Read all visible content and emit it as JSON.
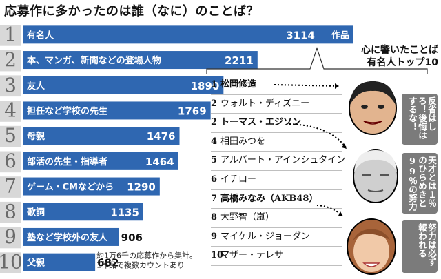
{
  "title": "応募作に多かったのは誰（なに）のことば？",
  "chart_data": {
    "type": "bar",
    "orientation": "horizontal",
    "title": "応募作に多かったのは誰（なに）のことば？",
    "ranks": [
      "1",
      "2",
      "3",
      "4",
      "5",
      "6",
      "7",
      "8",
      "9",
      "10"
    ],
    "categories": [
      "有名人",
      "本、マンガ、新聞などの登場人物",
      "友人",
      "担任など学校の先生",
      "母親",
      "部活の先生・指導者",
      "ゲーム・CMなどから",
      "歌詞",
      "塾など学校外の友人",
      "父親"
    ],
    "values": [
      3114,
      2211,
      1890,
      1769,
      1476,
      1464,
      1290,
      1135,
      906,
      682
    ],
    "value_labels": [
      "3114",
      "2211",
      "1890",
      "1769",
      "1476",
      "1464",
      "1290",
      "1135",
      "906",
      "682"
    ],
    "unit_label": "作品",
    "note": [
      "約1万6千の応募作から集計。",
      "1作品で複数カウントあり"
    ],
    "colors": {
      "bar": "#2f67b1",
      "rank_band": "#d8d8d8"
    }
  },
  "ranking": {
    "title_lines": [
      "心に響いたことば",
      "有名人トップ10"
    ],
    "items": [
      {
        "num": "1",
        "name": "松岡修造",
        "highlight": true
      },
      {
        "num": "2",
        "name": "ウォルト・ディズニー",
        "highlight": false
      },
      {
        "num": "2",
        "name": "トーマス・エジソン",
        "highlight": true
      },
      {
        "num": "4",
        "name": "相田みつを",
        "highlight": false
      },
      {
        "num": "5",
        "name": "アルバート・アインシュタイン",
        "highlight": false
      },
      {
        "num": "6",
        "name": "イチロー",
        "highlight": false
      },
      {
        "num": "7",
        "name": "高橋みなみ（AKB48）",
        "highlight": true
      },
      {
        "num": "8",
        "name": "大野智（嵐）",
        "highlight": false
      },
      {
        "num": "9",
        "name": "マイケル・ジョーダン",
        "highlight": false
      },
      {
        "num": "10",
        "name": "マザー・テレサ",
        "highlight": false
      }
    ],
    "quotes": [
      "反省はしろ！後悔はするな！",
      "天才とは１％のひらめきと99％の努力",
      "努力は必ず報われる"
    ]
  }
}
